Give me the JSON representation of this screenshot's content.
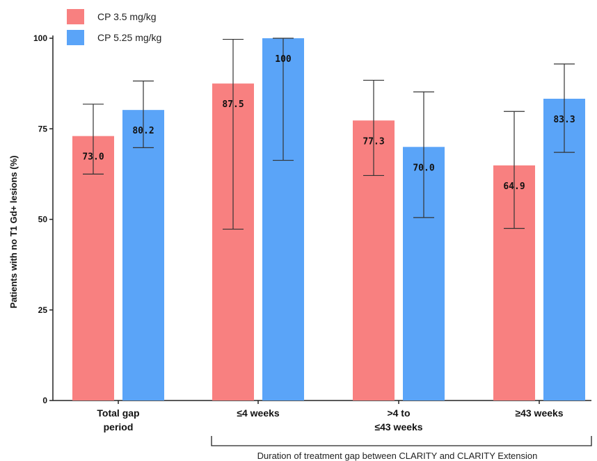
{
  "chart_data": {
    "type": "bar",
    "categories": [
      [
        "Total gap",
        "period"
      ],
      [
        "≤4 weeks"
      ],
      [
        ">4 to",
        "≤43 weeks"
      ],
      [
        "≥43 weeks"
      ]
    ],
    "series": [
      {
        "name": "CP 3.5 mg/kg",
        "color": "#f88080",
        "values": [
          73.0,
          87.5,
          77.3,
          64.9
        ],
        "labels": [
          "73.0",
          "87.5",
          "77.3",
          "64.9"
        ],
        "err_low": [
          62.5,
          47.3,
          62.1,
          47.5
        ],
        "err_high": [
          81.8,
          99.7,
          88.4,
          79.8
        ]
      },
      {
        "name": "CP 5.25 mg/kg",
        "color": "#5aa4f8",
        "values": [
          80.2,
          100,
          70.0,
          83.3
        ],
        "labels": [
          "80.2",
          "100",
          "70.0",
          "83.3"
        ],
        "err_low": [
          69.8,
          66.3,
          50.5,
          68.5
        ],
        "err_high": [
          88.2,
          100,
          85.2,
          92.9
        ]
      }
    ],
    "ylabel": "Patients with no T1 Gd+ lesions (%)",
    "xlabel": "",
    "ylim": [
      0,
      100
    ],
    "yticks": [
      0,
      25,
      50,
      75,
      100
    ],
    "legend_position": "top-left",
    "grid": false,
    "bracket_label": "Duration of treatment gap between CLARITY and CLARITY Extension"
  }
}
